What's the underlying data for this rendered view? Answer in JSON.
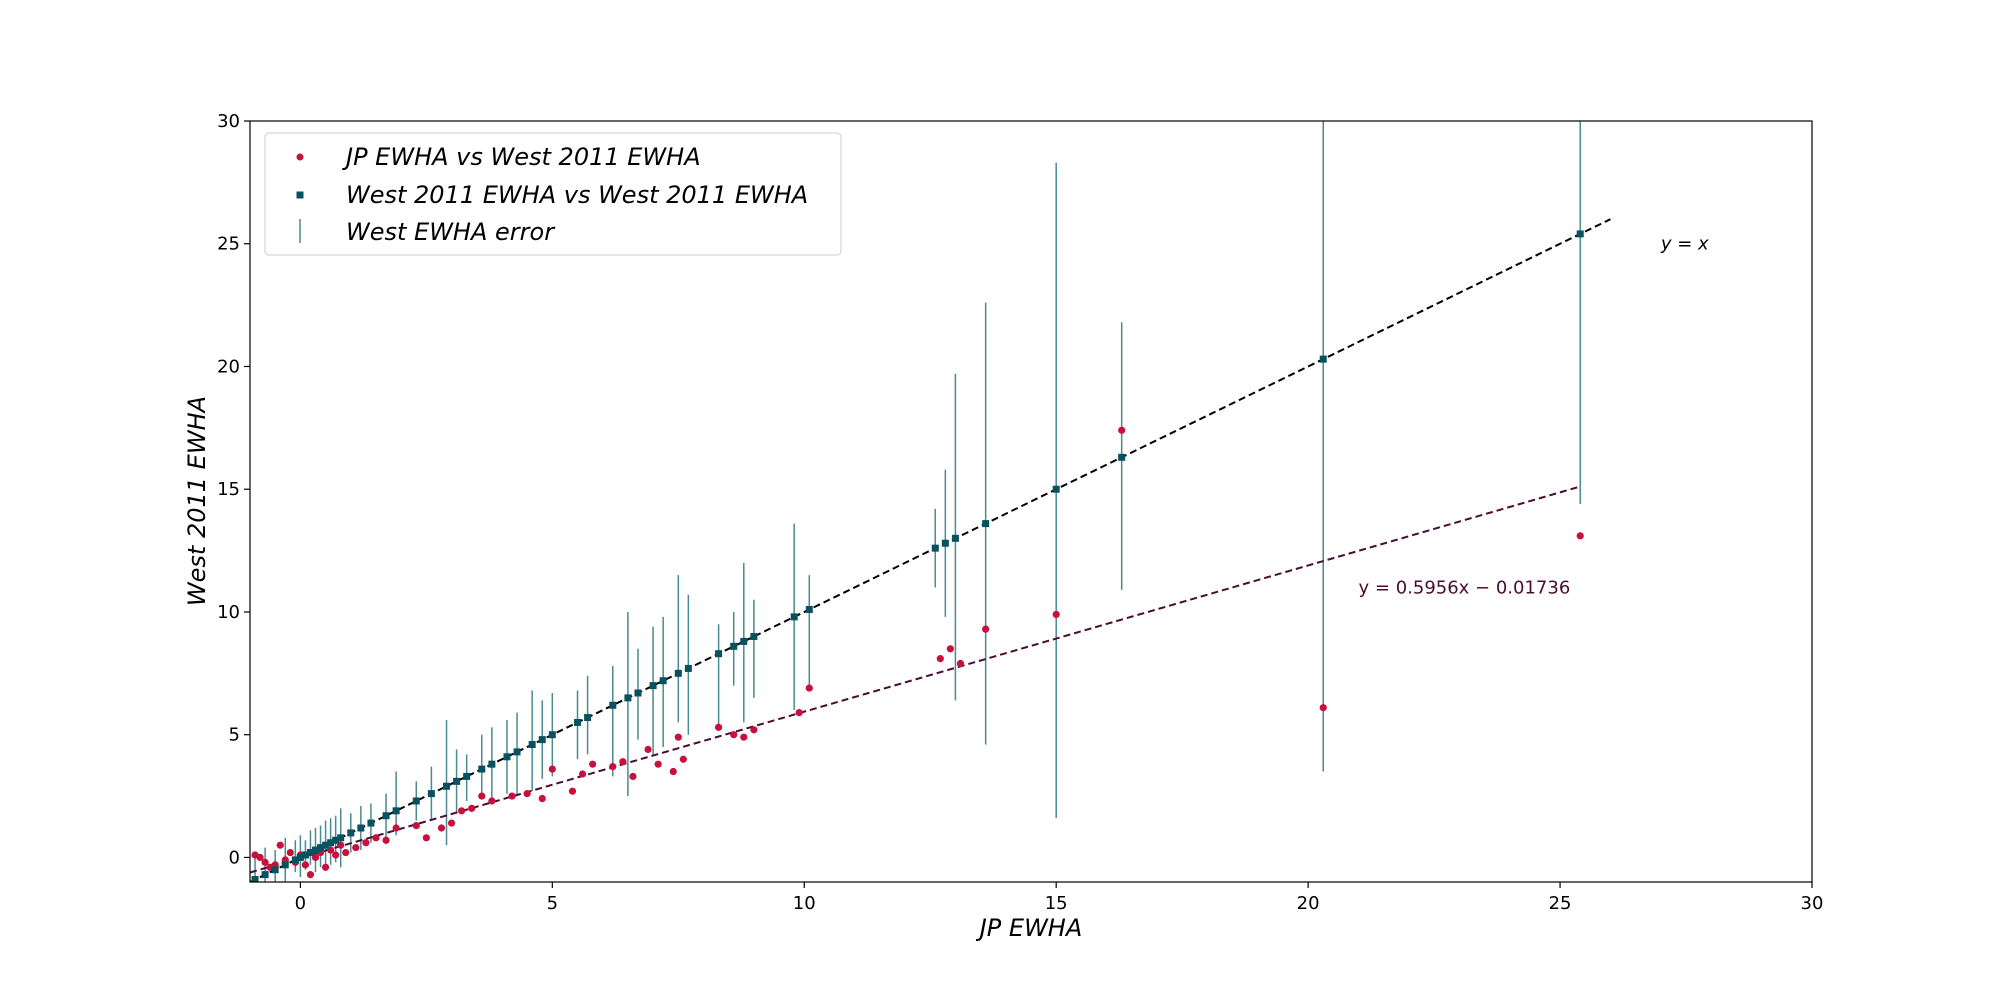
{
  "chart_data": {
    "type": "scatter",
    "xlabel": "JP EWHA",
    "ylabel": "West 2011 EWHA",
    "xlim": [
      -1,
      30
    ],
    "ylim": [
      -1,
      30
    ],
    "xticks": [
      0,
      5,
      10,
      15,
      20,
      25,
      30
    ],
    "yticks": [
      0,
      5,
      10,
      15,
      20,
      25,
      30
    ],
    "grid": false,
    "legend_position": "top-left",
    "colors": {
      "jp_points": "#c8103c",
      "west_points": "#08525f",
      "error_bars": "#4a8a90",
      "identity_line": "#000000",
      "fit_line": "#4a0c33"
    },
    "legend": [
      {
        "label": "JP EWHA vs West 2011 EWHA",
        "marker": "circle"
      },
      {
        "label": "West 2011 EWHA vs West 2011 EWHA",
        "marker": "square"
      },
      {
        "label": "West EWHA error",
        "marker": "bar"
      }
    ],
    "annotations": {
      "identity": {
        "text": "y = x",
        "x": 27,
        "y": 25
      },
      "fit": {
        "text": "y = 0.5956x − 0.01736",
        "x": 21,
        "y": 11
      }
    },
    "lines": {
      "identity": {
        "x": [
          -1,
          26
        ],
        "y": [
          -1,
          26
        ]
      },
      "fit": {
        "slope": 0.5956,
        "intercept": -0.01736,
        "x": [
          -1,
          25.4
        ]
      }
    },
    "series": [
      {
        "name": "JP EWHA vs West 2011 EWHA",
        "marker": "circle",
        "points": [
          [
            -0.9,
            0.1
          ],
          [
            -0.8,
            0.0
          ],
          [
            -0.7,
            -0.2
          ],
          [
            -0.6,
            -0.4
          ],
          [
            -0.5,
            -0.3
          ],
          [
            -0.4,
            0.5
          ],
          [
            -0.3,
            -0.1
          ],
          [
            -0.2,
            0.2
          ],
          [
            -0.1,
            -0.2
          ],
          [
            0.0,
            0.1
          ],
          [
            0.1,
            -0.3
          ],
          [
            0.2,
            -0.7
          ],
          [
            0.3,
            0.0
          ],
          [
            0.4,
            0.2
          ],
          [
            0.5,
            -0.4
          ],
          [
            0.6,
            0.3
          ],
          [
            0.7,
            0.1
          ],
          [
            0.8,
            0.5
          ],
          [
            0.9,
            0.2
          ],
          [
            1.1,
            0.4
          ],
          [
            1.3,
            0.6
          ],
          [
            1.5,
            0.8
          ],
          [
            1.7,
            0.7
          ],
          [
            1.9,
            1.2
          ],
          [
            2.3,
            1.3
          ],
          [
            2.5,
            0.8
          ],
          [
            2.8,
            1.2
          ],
          [
            3.0,
            1.4
          ],
          [
            3.2,
            1.9
          ],
          [
            3.4,
            2.0
          ],
          [
            3.6,
            2.5
          ],
          [
            3.8,
            2.3
          ],
          [
            4.2,
            2.5
          ],
          [
            4.5,
            2.6
          ],
          [
            4.8,
            2.4
          ],
          [
            5.0,
            3.6
          ],
          [
            5.4,
            2.7
          ],
          [
            5.6,
            3.4
          ],
          [
            5.8,
            3.8
          ],
          [
            6.2,
            3.7
          ],
          [
            6.4,
            3.9
          ],
          [
            6.6,
            3.3
          ],
          [
            6.9,
            4.4
          ],
          [
            7.1,
            3.8
          ],
          [
            7.4,
            3.5
          ],
          [
            7.5,
            4.9
          ],
          [
            7.6,
            4.0
          ],
          [
            8.3,
            5.3
          ],
          [
            8.6,
            5.0
          ],
          [
            8.8,
            4.9
          ],
          [
            9.0,
            5.2
          ],
          [
            9.9,
            5.9
          ],
          [
            10.1,
            6.9
          ],
          [
            12.7,
            8.1
          ],
          [
            12.9,
            8.5
          ],
          [
            13.1,
            7.9
          ],
          [
            13.6,
            9.3
          ],
          [
            15.0,
            9.9
          ],
          [
            16.3,
            17.4
          ],
          [
            20.3,
            6.1
          ],
          [
            25.4,
            13.1
          ]
        ]
      },
      {
        "name": "West 2011 EWHA vs West 2011 EWHA",
        "marker": "square",
        "points": [
          [
            -0.9,
            -0.9
          ],
          [
            -0.7,
            -0.7
          ],
          [
            -0.5,
            -0.5
          ],
          [
            -0.3,
            -0.3
          ],
          [
            -0.1,
            -0.1
          ],
          [
            0.0,
            0.0
          ],
          [
            0.1,
            0.1
          ],
          [
            0.2,
            0.2
          ],
          [
            0.3,
            0.3
          ],
          [
            0.4,
            0.4
          ],
          [
            0.5,
            0.5
          ],
          [
            0.6,
            0.6
          ],
          [
            0.7,
            0.7
          ],
          [
            0.8,
            0.8
          ],
          [
            1.0,
            1.0
          ],
          [
            1.2,
            1.2
          ],
          [
            1.4,
            1.4
          ],
          [
            1.7,
            1.7
          ],
          [
            1.9,
            1.9
          ],
          [
            2.3,
            2.3
          ],
          [
            2.6,
            2.6
          ],
          [
            2.9,
            2.9
          ],
          [
            3.1,
            3.1
          ],
          [
            3.3,
            3.3
          ],
          [
            3.6,
            3.6
          ],
          [
            3.8,
            3.8
          ],
          [
            4.1,
            4.1
          ],
          [
            4.3,
            4.3
          ],
          [
            4.6,
            4.6
          ],
          [
            4.8,
            4.8
          ],
          [
            5.0,
            5.0
          ],
          [
            5.5,
            5.5
          ],
          [
            5.7,
            5.7
          ],
          [
            6.2,
            6.2
          ],
          [
            6.5,
            6.5
          ],
          [
            6.7,
            6.7
          ],
          [
            7.0,
            7.0
          ],
          [
            7.2,
            7.2
          ],
          [
            7.5,
            7.5
          ],
          [
            7.7,
            7.7
          ],
          [
            8.3,
            8.3
          ],
          [
            8.6,
            8.6
          ],
          [
            8.8,
            8.8
          ],
          [
            9.0,
            9.0
          ],
          [
            9.8,
            9.8
          ],
          [
            10.1,
            10.1
          ],
          [
            12.6,
            12.6
          ],
          [
            12.8,
            12.8
          ],
          [
            13.0,
            13.0
          ],
          [
            13.6,
            13.6
          ],
          [
            15.0,
            15.0
          ],
          [
            16.3,
            16.3
          ],
          [
            20.3,
            20.3
          ],
          [
            25.4,
            25.4
          ]
        ]
      },
      {
        "name": "West EWHA error",
        "marker": "bar",
        "bars": [
          [
            -0.9,
            -1.0,
            0.0
          ],
          [
            -0.7,
            -1.0,
            0.4
          ],
          [
            -0.5,
            -1.0,
            0.3
          ],
          [
            -0.3,
            -1.0,
            0.8
          ],
          [
            -0.1,
            -0.6,
            0.7
          ],
          [
            0.0,
            -0.8,
            0.9
          ],
          [
            0.1,
            -0.5,
            0.7
          ],
          [
            0.2,
            -0.3,
            1.1
          ],
          [
            0.3,
            -0.6,
            1.2
          ],
          [
            0.4,
            -0.4,
            1.3
          ],
          [
            0.5,
            -0.5,
            1.5
          ],
          [
            0.6,
            -0.3,
            1.6
          ],
          [
            0.7,
            -0.2,
            1.7
          ],
          [
            0.8,
            -0.4,
            2.0
          ],
          [
            1.0,
            0.2,
            1.8
          ],
          [
            1.2,
            0.3,
            2.1
          ],
          [
            1.4,
            0.6,
            2.2
          ],
          [
            1.7,
            0.8,
            2.6
          ],
          [
            1.9,
            0.9,
            3.5
          ],
          [
            2.3,
            1.5,
            3.1
          ],
          [
            2.6,
            1.5,
            3.7
          ],
          [
            2.9,
            0.5,
            5.6
          ],
          [
            3.1,
            1.8,
            4.4
          ],
          [
            3.3,
            2.3,
            4.2
          ],
          [
            3.6,
            2.4,
            5.0
          ],
          [
            3.8,
            2.3,
            5.3
          ],
          [
            4.1,
            2.6,
            5.6
          ],
          [
            4.3,
            2.5,
            5.9
          ],
          [
            4.6,
            2.7,
            6.8
          ],
          [
            4.8,
            3.2,
            6.4
          ],
          [
            5.0,
            3.3,
            6.7
          ],
          [
            5.5,
            4.0,
            6.8
          ],
          [
            5.7,
            4.2,
            7.4
          ],
          [
            6.2,
            3.3,
            7.8
          ],
          [
            6.5,
            2.5,
            10.0
          ],
          [
            6.7,
            4.8,
            8.5
          ],
          [
            7.0,
            4.2,
            9.4
          ],
          [
            7.2,
            4.5,
            9.8
          ],
          [
            7.5,
            5.5,
            11.5
          ],
          [
            7.7,
            5.0,
            10.7
          ],
          [
            8.3,
            5.2,
            9.5
          ],
          [
            8.6,
            7.0,
            10.0
          ],
          [
            8.8,
            5.5,
            12.0
          ],
          [
            9.0,
            6.5,
            10.5
          ],
          [
            9.8,
            6.0,
            13.6
          ],
          [
            10.1,
            7.0,
            11.5
          ],
          [
            12.6,
            11.0,
            14.2
          ],
          [
            12.8,
            9.8,
            15.8
          ],
          [
            13.0,
            6.4,
            19.7
          ],
          [
            13.6,
            4.6,
            22.6
          ],
          [
            15.0,
            1.6,
            28.3
          ],
          [
            16.3,
            10.9,
            21.8
          ],
          [
            20.3,
            3.5,
            30.0
          ],
          [
            25.4,
            14.4,
            30.0
          ]
        ]
      }
    ]
  }
}
